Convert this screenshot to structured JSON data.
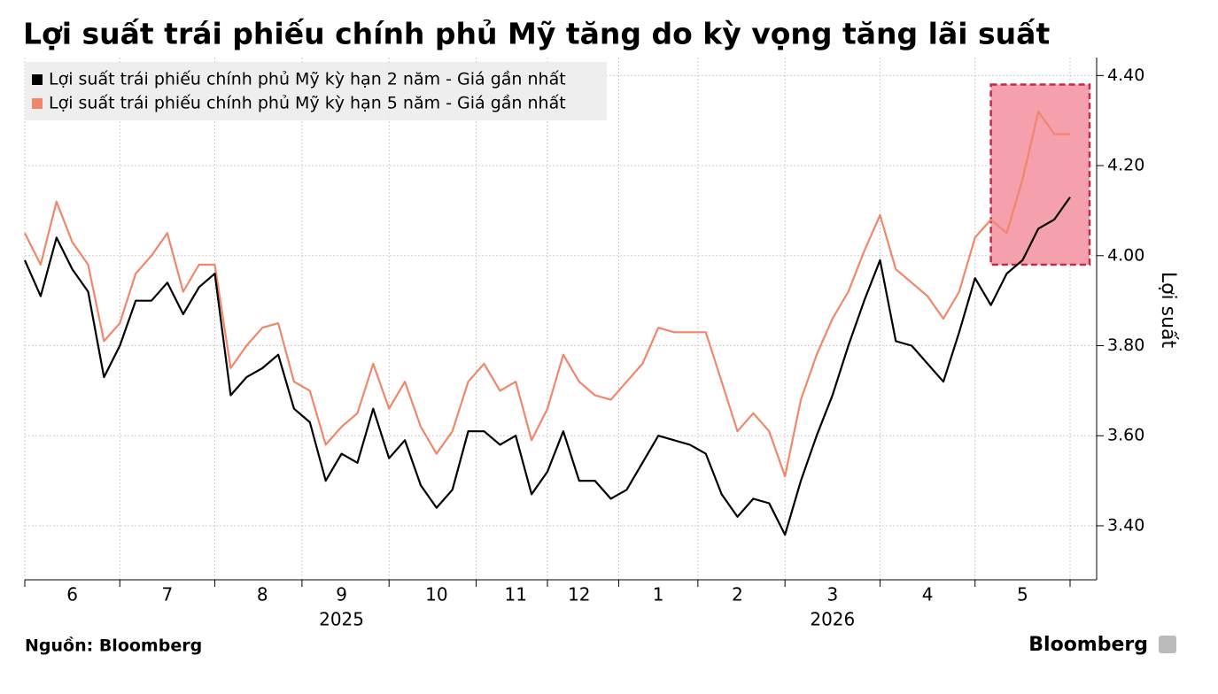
{
  "chart_data": {
    "type": "line",
    "title": "Lợi suất trái phiếu chính phủ Mỹ tăng do kỳ vọng tăng lãi suất",
    "y_axis_label": "Lợi suất",
    "source": "Nguồn: Bloomberg",
    "brand": "Bloomberg",
    "categories": [
      null,
      null,
      null,
      "6",
      null,
      null,
      null,
      null,
      null,
      "7",
      null,
      null,
      null,
      null,
      null,
      "8",
      null,
      null,
      null,
      null,
      "9",
      null,
      null,
      null,
      null,
      null,
      "10",
      null,
      null,
      null,
      null,
      "11",
      null,
      null,
      null,
      "12",
      null,
      null,
      null,
      null,
      "1",
      null,
      null,
      null,
      null,
      "2",
      null,
      null,
      null,
      null,
      null,
      "3",
      null,
      null,
      null,
      null,
      null,
      "4",
      null,
      null,
      null,
      null,
      null,
      "5",
      null,
      null,
      null
    ],
    "year_labels": [
      {
        "label": "2025",
        "category": 20
      },
      {
        "label": "2026",
        "category": 51
      }
    ],
    "series": [
      {
        "name": "Lợi suất trái phiếu chính phủ Mỹ kỳ hạn 2 năm - Giá gần nhất",
        "color": "#000000",
        "values": [
          3.99,
          3.91,
          4.04,
          3.97,
          3.92,
          3.73,
          3.8,
          3.9,
          3.9,
          3.94,
          3.87,
          3.93,
          3.96,
          3.69,
          3.73,
          3.75,
          3.78,
          3.66,
          3.63,
          3.5,
          3.56,
          3.54,
          3.66,
          3.55,
          3.59,
          3.49,
          3.44,
          3.48,
          3.61,
          3.61,
          3.58,
          3.6,
          3.47,
          3.52,
          3.61,
          3.5,
          3.5,
          3.46,
          3.48,
          3.54,
          3.6,
          3.59,
          3.58,
          3.56,
          3.47,
          3.42,
          3.46,
          3.45,
          3.38,
          3.5,
          3.6,
          3.69,
          3.8,
          3.9,
          3.99,
          3.81,
          3.8,
          3.76,
          3.72,
          3.83,
          3.95,
          3.89,
          3.96,
          3.99,
          4.06,
          4.08,
          4.13
        ]
      },
      {
        "name": "Lợi suất trái phiếu chính phủ Mỹ kỳ hạn 5 năm - Giá gần nhất",
        "color": "#f0876a",
        "values": [
          4.05,
          3.98,
          4.12,
          4.03,
          3.98,
          3.81,
          3.85,
          3.96,
          4.0,
          4.05,
          3.92,
          3.98,
          3.98,
          3.75,
          3.8,
          3.84,
          3.85,
          3.72,
          3.7,
          3.58,
          3.62,
          3.65,
          3.76,
          3.66,
          3.72,
          3.62,
          3.56,
          3.61,
          3.72,
          3.76,
          3.7,
          3.72,
          3.59,
          3.66,
          3.78,
          3.72,
          3.69,
          3.68,
          3.72,
          3.76,
          3.84,
          3.83,
          3.83,
          3.83,
          3.72,
          3.61,
          3.65,
          3.61,
          3.51,
          3.68,
          3.78,
          3.86,
          3.92,
          4.01,
          4.09,
          3.97,
          3.94,
          3.91,
          3.86,
          3.92,
          4.04,
          4.08,
          4.05,
          4.17,
          4.32,
          4.27,
          4.27
        ]
      }
    ],
    "highlight": {
      "from": 61,
      "to": 66,
      "ylim": [
        3.98,
        4.38
      ]
    },
    "ylim": [
      3.28,
      4.44
    ],
    "yticks": [
      {
        "value": 3.4,
        "label": "3.40"
      },
      {
        "value": 3.6,
        "label": "3.60"
      },
      {
        "value": 3.8,
        "label": "3.80"
      },
      {
        "value": 4.0,
        "label": "4.00"
      },
      {
        "value": 4.2,
        "label": "4.20"
      },
      {
        "value": 4.4,
        "label": "4.40"
      }
    ],
    "grid": true
  }
}
